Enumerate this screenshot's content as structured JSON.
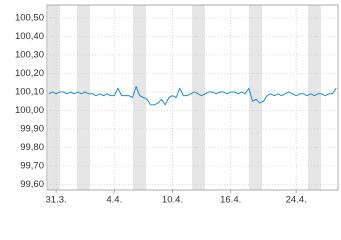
{
  "chart_data": {
    "type": "line",
    "categories": [
      null,
      null,
      "31.3.",
      null,
      null,
      null,
      null,
      null,
      null,
      null,
      null,
      null,
      null,
      null,
      null,
      null,
      null,
      null,
      "4.4.",
      null,
      null,
      null,
      null,
      null,
      null,
      null,
      null,
      null,
      null,
      null,
      null,
      null,
      null,
      null,
      "10.4.",
      null,
      null,
      null,
      null,
      null,
      null,
      null,
      null,
      null,
      null,
      null,
      null,
      null,
      null,
      null,
      "16.4.",
      null,
      null,
      null,
      null,
      null,
      null,
      null,
      null,
      null,
      null,
      null,
      null,
      null,
      null,
      null,
      null,
      null,
      "24.4.",
      null,
      null,
      null,
      null,
      null,
      null,
      null,
      null,
      null,
      null,
      null
    ],
    "values": [
      100.09,
      100.1,
      100.09,
      100.1,
      100.1,
      100.09,
      100.1,
      100.09,
      100.1,
      100.09,
      100.1,
      100.09,
      100.09,
      100.08,
      100.09,
      100.08,
      100.09,
      100.08,
      100.08,
      100.12,
      100.08,
      100.08,
      100.08,
      100.07,
      100.13,
      100.08,
      100.07,
      100.06,
      100.03,
      100.03,
      100.04,
      100.06,
      100.03,
      100.07,
      100.08,
      100.07,
      100.12,
      100.08,
      100.08,
      100.09,
      100.1,
      100.09,
      100.08,
      100.09,
      100.1,
      100.1,
      100.09,
      100.1,
      100.1,
      100.09,
      100.1,
      100.1,
      100.09,
      100.1,
      100.09,
      100.12,
      100.05,
      100.06,
      100.04,
      100.05,
      100.08,
      100.09,
      100.08,
      100.09,
      100.08,
      100.09,
      100.1,
      100.09,
      100.08,
      100.09,
      100.09,
      100.08,
      100.09,
      100.08,
      100.09,
      100.09,
      100.08,
      100.09,
      100.09,
      100.12
    ],
    "color": "#1e8fd2",
    "ylim": [
      99.57,
      100.57
    ],
    "yticks": [
      {
        "value": 99.6,
        "label": "99,60"
      },
      {
        "value": 99.7,
        "label": "99,70"
      },
      {
        "value": 99.8,
        "label": "99,80"
      },
      {
        "value": 99.9,
        "label": "99,90"
      },
      {
        "value": 100.0,
        "label": "100,00"
      },
      {
        "value": 100.1,
        "label": "100,10"
      },
      {
        "value": 100.2,
        "label": "100,20"
      },
      {
        "value": 100.3,
        "label": "100,30"
      },
      {
        "value": 100.4,
        "label": "100,40"
      },
      {
        "value": 100.5,
        "label": "100,50"
      }
    ],
    "grid": true
  }
}
